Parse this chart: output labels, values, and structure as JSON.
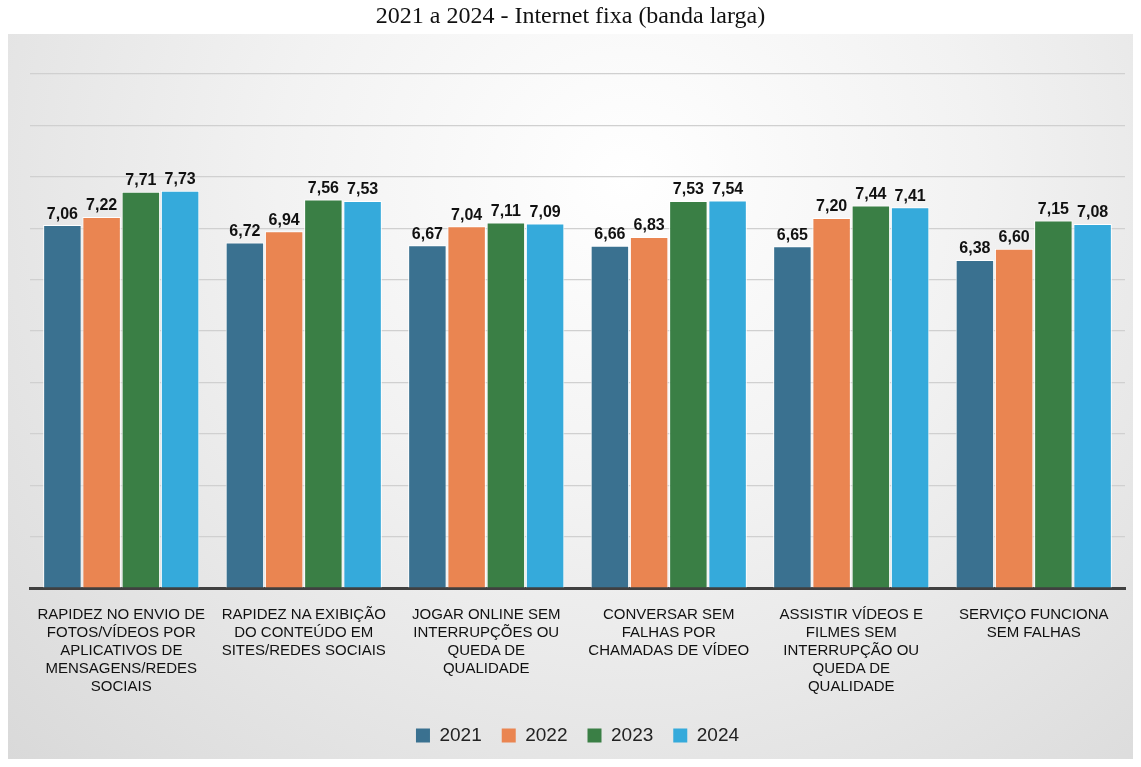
{
  "chart_data": {
    "type": "bar",
    "title": "2021 a 2024 - Internet fixa (banda larga)",
    "categories": [
      "RAPIDEZ NO ENVIO DE FOTOS/VÍDEOS POR APLICATIVOS DE MENSAGENS/REDES SOCIAIS",
      "RAPIDEZ NA EXIBIÇÃO DO CONTEÚDO EM SITES/REDES SOCIAIS",
      "JOGAR ONLINE SEM INTERRUPÇÕES OU QUEDA DE QUALIDADE",
      "CONVERSAR SEM FALHAS POR CHAMADAS DE VÍDEO",
      "ASSISTIR VÍDEOS E FILMES SEM INTERRUPÇÃO OU QUEDA DE QUALIDADE",
      "SERVIÇO FUNCIONA SEM FALHAS"
    ],
    "series": [
      {
        "name": "2021",
        "color": "#3a7190",
        "values": [
          7.06,
          6.72,
          6.67,
          6.66,
          6.65,
          6.38
        ],
        "value_labels": [
          "7,06",
          "6,72",
          "6,67",
          "6,66",
          "6,65",
          "6,38"
        ]
      },
      {
        "name": "2022",
        "color": "#ea8551",
        "values": [
          7.22,
          6.94,
          7.04,
          6.83,
          7.2,
          6.6
        ],
        "value_labels": [
          "7,22",
          "6,94",
          "7,04",
          "6,83",
          "7,20",
          "6,60"
        ]
      },
      {
        "name": "2023",
        "color": "#3a7f45",
        "values": [
          7.71,
          7.56,
          7.11,
          7.53,
          7.44,
          7.15
        ],
        "value_labels": [
          "7,71",
          "7,56",
          "7,11",
          "7,53",
          "7,44",
          "7,15"
        ]
      },
      {
        "name": "2024",
        "color": "#35aadb",
        "values": [
          7.73,
          7.53,
          7.09,
          7.54,
          7.41,
          7.08
        ],
        "value_labels": [
          "7,73",
          "7,53",
          "7,09",
          "7,54",
          "7,41",
          "7,08"
        ]
      }
    ],
    "ylim": [
      0,
      10
    ],
    "yticks": [
      {
        "value": 0,
        "label": null
      },
      {
        "value": 1,
        "label": null
      },
      {
        "value": 2,
        "label": null
      },
      {
        "value": 3,
        "label": null
      },
      {
        "value": 4,
        "label": null
      },
      {
        "value": 5,
        "label": null
      },
      {
        "value": 6,
        "label": null
      },
      {
        "value": 7,
        "label": null
      },
      {
        "value": 8,
        "label": null
      },
      {
        "value": 9,
        "label": null
      },
      {
        "value": 10,
        "label": null
      }
    ],
    "grid": "y",
    "legend": "bottom",
    "tick_labels": "x"
  }
}
